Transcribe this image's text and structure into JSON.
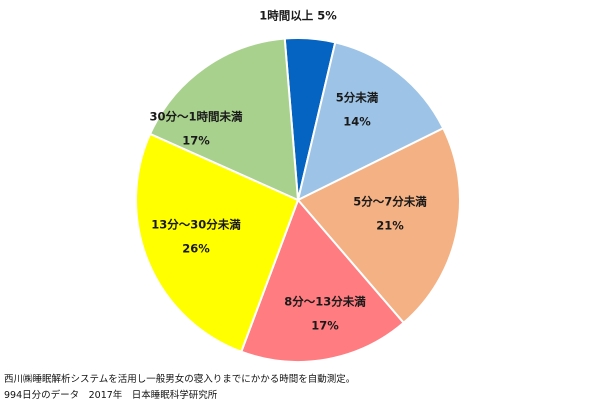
{
  "chart_data": {
    "type": "pie",
    "title": "",
    "start_angle_deg": -4.7,
    "direction": "clockwise",
    "slices": [
      {
        "label": "1時間以上",
        "pct_text": "5%",
        "value": 5,
        "color": "#0563c1"
      },
      {
        "label": "5分未満",
        "pct_text": "14%",
        "value": 14,
        "color": "#9dc3e6"
      },
      {
        "label": "5分～7分未満",
        "pct_text": "21%",
        "value": 21,
        "color": "#f4b183"
      },
      {
        "label": "8分～13分未満",
        "pct_text": "17%",
        "value": 17,
        "color": "#ff7c80"
      },
      {
        "label": "13分～30分未満",
        "pct_text": "26%",
        "value": 26,
        "color": "#ffff00"
      },
      {
        "label": "30分～1時間未満",
        "pct_text": "17%",
        "value": 17,
        "color": "#a9d18e"
      }
    ]
  },
  "notes": {
    "line1": "西川㈱睡眠解析システムを活用し一般男女の寝入りまでにかかる時間を自動測定。",
    "line2": "994日分のデータ　2017年　日本睡眠科学研究所"
  }
}
